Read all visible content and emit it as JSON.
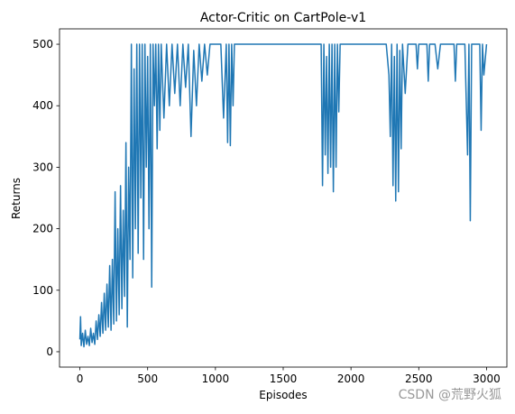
{
  "chart_data": {
    "type": "line",
    "title": "Actor-Critic on CartPole-v1",
    "x_label": "Episodes",
    "y_label": "Returns",
    "watermark": "CSDN @荒野火狐",
    "color": "#1f77b4",
    "xlim": [
      -150,
      3150
    ],
    "ylim": [
      -25,
      525
    ],
    "xticks": [
      0,
      500,
      1000,
      1500,
      2000,
      2500,
      3000
    ],
    "yticks": [
      0,
      100,
      200,
      300,
      400,
      500
    ],
    "grid": false,
    "x": [
      0,
      5,
      10,
      20,
      30,
      40,
      50,
      60,
      70,
      80,
      90,
      100,
      110,
      120,
      130,
      140,
      150,
      160,
      170,
      180,
      190,
      200,
      210,
      220,
      230,
      240,
      250,
      260,
      270,
      280,
      290,
      300,
      310,
      320,
      330,
      340,
      350,
      360,
      370,
      380,
      390,
      400,
      410,
      420,
      430,
      440,
      450,
      460,
      470,
      480,
      490,
      500,
      510,
      520,
      530,
      540,
      550,
      560,
      570,
      580,
      590,
      600,
      620,
      640,
      660,
      680,
      700,
      720,
      740,
      760,
      780,
      800,
      820,
      840,
      860,
      880,
      900,
      920,
      940,
      960,
      980,
      1000,
      1040,
      1060,
      1080,
      1090,
      1100,
      1110,
      1120,
      1130,
      1140,
      1200,
      1780,
      1790,
      1800,
      1810,
      1820,
      1830,
      1840,
      1850,
      1860,
      1870,
      1880,
      1890,
      1900,
      1910,
      1920,
      1940,
      2260,
      2280,
      2290,
      2300,
      2310,
      2320,
      2330,
      2340,
      2350,
      2360,
      2370,
      2380,
      2400,
      2420,
      2480,
      2490,
      2500,
      2560,
      2570,
      2580,
      2620,
      2640,
      2660,
      2760,
      2770,
      2780,
      2840,
      2860,
      2870,
      2880,
      2890,
      2950,
      2960,
      2970,
      2980,
      3000
    ],
    "values": [
      20,
      57,
      10,
      30,
      8,
      35,
      12,
      25,
      10,
      38,
      15,
      30,
      12,
      50,
      20,
      60,
      25,
      80,
      30,
      95,
      35,
      110,
      40,
      140,
      35,
      150,
      45,
      260,
      50,
      200,
      60,
      270,
      70,
      230,
      90,
      340,
      40,
      300,
      150,
      500,
      120,
      460,
      200,
      500,
      160,
      500,
      250,
      500,
      150,
      500,
      300,
      480,
      200,
      500,
      105,
      500,
      400,
      500,
      330,
      500,
      360,
      500,
      380,
      500,
      400,
      500,
      420,
      500,
      400,
      500,
      430,
      500,
      350,
      490,
      400,
      500,
      440,
      500,
      450,
      500,
      500,
      500,
      500,
      380,
      500,
      340,
      500,
      335,
      500,
      400,
      500,
      500,
      500,
      270,
      500,
      320,
      480,
      290,
      500,
      300,
      500,
      260,
      500,
      300,
      500,
      390,
      500,
      500,
      500,
      450,
      350,
      500,
      270,
      480,
      245,
      500,
      260,
      490,
      330,
      500,
      420,
      500,
      500,
      460,
      500,
      500,
      440,
      500,
      500,
      460,
      500,
      500,
      440,
      500,
      500,
      320,
      500,
      213,
      500,
      500,
      360,
      500,
      450,
      500
    ]
  }
}
